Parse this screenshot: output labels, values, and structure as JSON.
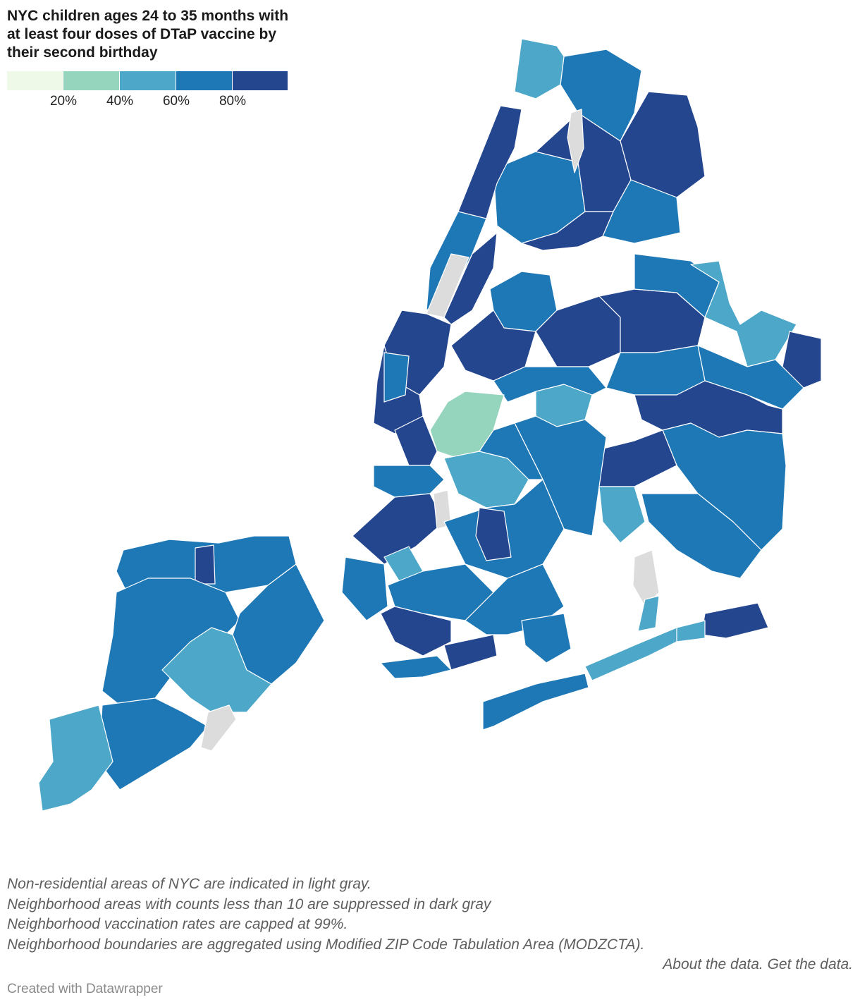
{
  "title": "NYC children ages 24 to 35 months with at least four doses of DTaP vaccine by their second birthday",
  "legend": {
    "colors": [
      "#eff9e7",
      "#95d5bd",
      "#4ca7c9",
      "#1f78b6",
      "#24468f"
    ],
    "ticks": [
      "20%",
      "40%",
      "60%",
      "80%"
    ],
    "bins": [
      [
        0,
        20
      ],
      [
        20,
        40
      ],
      [
        40,
        60
      ],
      [
        60,
        80
      ],
      [
        80,
        100
      ]
    ]
  },
  "map_colors": {
    "non_residential": "#dcdcdc",
    "borders": "#ffffff"
  },
  "notes": {
    "line1": "Non-residential areas of NYC are indicated in light gray.",
    "line2": "Neighborhood areas with counts less than 10 are suppressed in dark gray",
    "line3": "Neighborhood vaccination rates are capped at 99%.",
    "line4": "Neighborhood boundaries are aggregated using Modified ZIP Code Tabulation Area (MODZCTA).",
    "about_link": "About the data.",
    "get_link": "Get the data."
  },
  "credit": "Created with Datawrapper"
}
